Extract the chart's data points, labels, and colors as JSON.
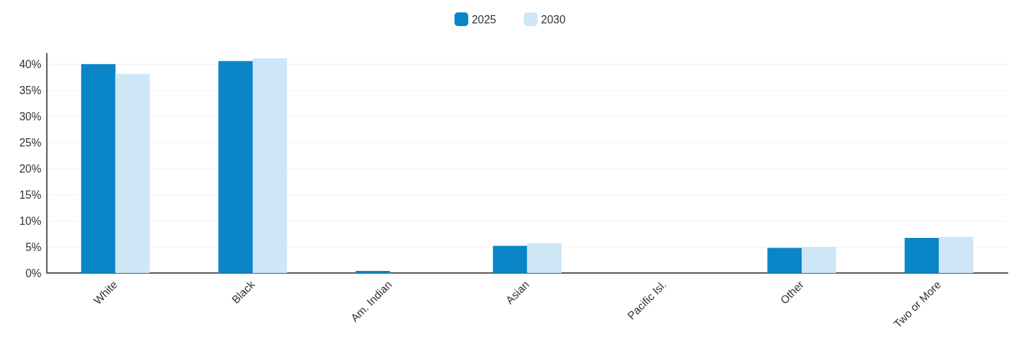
{
  "chart_data": {
    "type": "bar",
    "categories": [
      "White",
      "Black",
      "Am. Indian",
      "Asian",
      "Pacific Isl.",
      "Other",
      "Two or More"
    ],
    "series": [
      {
        "name": "2025",
        "color": "#0a86c8",
        "values": [
          40.0,
          40.6,
          0.4,
          5.2,
          null,
          4.8,
          6.7
        ]
      },
      {
        "name": "2030",
        "color": "#cfe6f6",
        "values": [
          38.1,
          41.1,
          null,
          5.7,
          null,
          5.0,
          6.9
        ]
      }
    ],
    "ylim": [
      0,
      42
    ],
    "yticks": [
      {
        "value": 0,
        "label": "0%"
      },
      {
        "value": 5,
        "label": "5%"
      },
      {
        "value": 10,
        "label": "10%"
      },
      {
        "value": 15,
        "label": "15%"
      },
      {
        "value": 20,
        "label": "20%"
      },
      {
        "value": 25,
        "label": "25%"
      },
      {
        "value": 30,
        "label": "30%"
      },
      {
        "value": 35,
        "label": "35%"
      },
      {
        "value": 40,
        "label": "40%"
      }
    ],
    "grid": "y",
    "legend": "top"
  }
}
